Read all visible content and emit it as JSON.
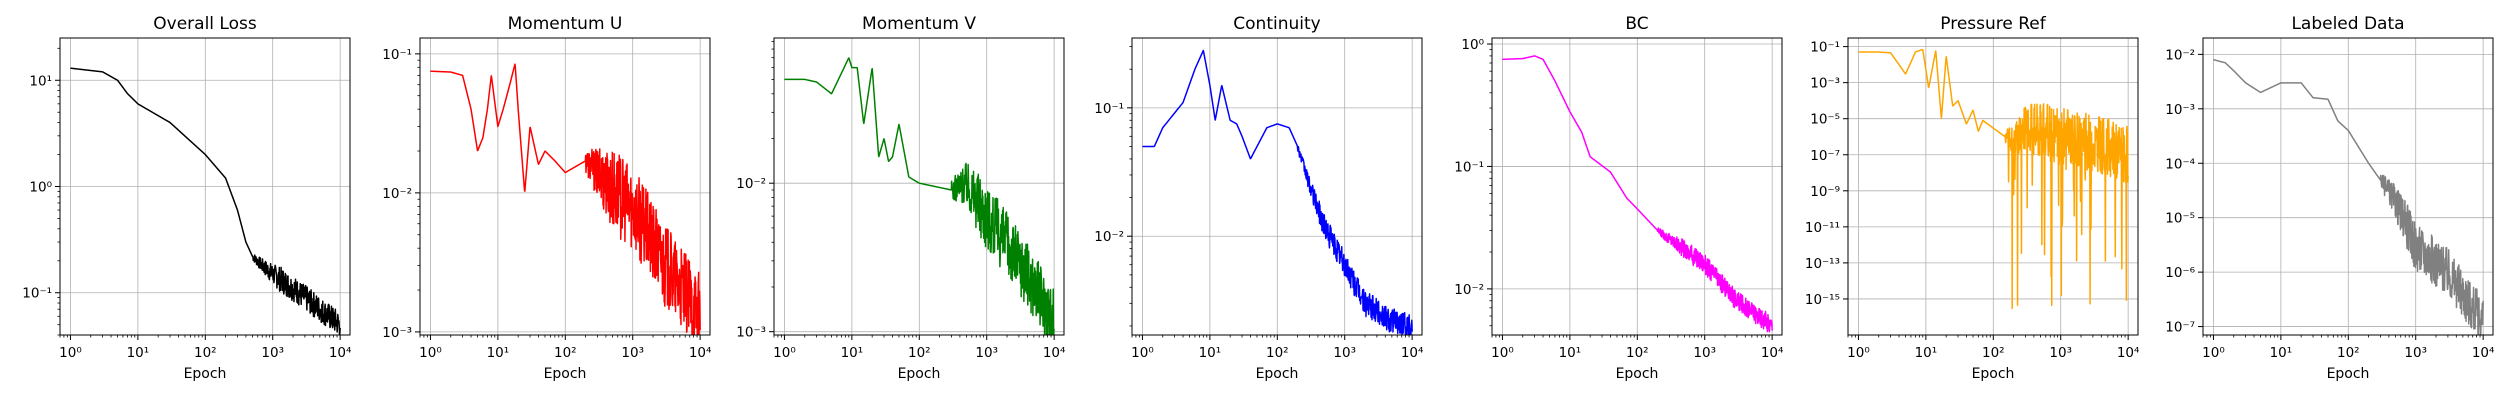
{
  "chart_data": [
    {
      "type": "line",
      "title": "Overall Loss",
      "xlabel": "Epoch",
      "ylabel": "",
      "xscale": "log",
      "yscale": "log",
      "xlim": [
        0.7,
        14000
      ],
      "ylim": [
        0.04,
        25
      ],
      "grid": true,
      "color": "#000000",
      "xticks": [
        {
          "v": 1,
          "t": "10⁰"
        },
        {
          "v": 10,
          "t": "10¹"
        },
        {
          "v": 100,
          "t": "10²"
        },
        {
          "v": 1000,
          "t": "10³"
        },
        {
          "v": 10000,
          "t": "10⁴"
        }
      ],
      "yticks": [
        {
          "v": 0.1,
          "t": "10⁻¹"
        },
        {
          "v": 1,
          "t": "10⁰"
        },
        {
          "v": 10,
          "t": "10¹"
        }
      ],
      "x": [
        1,
        3,
        5,
        7,
        10,
        30,
        100,
        200,
        300,
        400,
        500,
        700,
        1000,
        2000,
        5000,
        10000
      ],
      "y": [
        13,
        12,
        10,
        7.5,
        6,
        4,
        2,
        1.2,
        0.6,
        0.3,
        0.22,
        0.18,
        0.15,
        0.11,
        0.07,
        0.05
      ],
      "noise": {
        "from": 500,
        "amp": 0.12
      }
    },
    {
      "type": "line",
      "title": "Momentum U",
      "xlabel": "Epoch",
      "ylabel": "",
      "xscale": "log",
      "yscale": "log",
      "xlim": [
        0.7,
        14000
      ],
      "ylim": [
        0.00095,
        0.13
      ],
      "grid": true,
      "color": "#ff0000",
      "xticks": [
        {
          "v": 1,
          "t": "10⁰"
        },
        {
          "v": 10,
          "t": "10¹"
        },
        {
          "v": 100,
          "t": "10²"
        },
        {
          "v": 1000,
          "t": "10³"
        },
        {
          "v": 10000,
          "t": "10⁴"
        }
      ],
      "yticks": [
        {
          "v": 0.001,
          "t": "10⁻³"
        },
        {
          "v": 0.01,
          "t": "10⁻²"
        },
        {
          "v": 0.1,
          "t": "10⁻¹"
        }
      ],
      "x": [
        1,
        2,
        3,
        4,
        5,
        6,
        7,
        8,
        10,
        12,
        15,
        18,
        20,
        25,
        30,
        40,
        50,
        70,
        100,
        200,
        400,
        700,
        1000,
        3000,
        10000
      ],
      "y": [
        0.075,
        0.074,
        0.07,
        0.04,
        0.02,
        0.025,
        0.04,
        0.07,
        0.03,
        0.04,
        0.06,
        0.085,
        0.04,
        0.01,
        0.03,
        0.016,
        0.02,
        0.017,
        0.014,
        0.017,
        0.012,
        0.009,
        0.008,
        0.003,
        0.0013
      ],
      "noise": {
        "from": 200,
        "amp": 0.3
      }
    },
    {
      "type": "line",
      "title": "Momentum V",
      "xlabel": "Epoch",
      "ylabel": "",
      "xscale": "log",
      "yscale": "log",
      "xlim": [
        0.7,
        14000
      ],
      "ylim": [
        0.00095,
        0.095
      ],
      "grid": true,
      "color": "#008000",
      "xticks": [
        {
          "v": 1,
          "t": "10⁰"
        },
        {
          "v": 10,
          "t": "10¹"
        },
        {
          "v": 100,
          "t": "10²"
        },
        {
          "v": 1000,
          "t": "10³"
        },
        {
          "v": 10000,
          "t": "10⁴"
        }
      ],
      "yticks": [
        {
          "v": 0.001,
          "t": "10⁻³"
        },
        {
          "v": 0.01,
          "t": "10⁻²"
        }
      ],
      "x": [
        1,
        2,
        3,
        5,
        7,
        9,
        10,
        12,
        15,
        20,
        25,
        30,
        35,
        40,
        50,
        70,
        100,
        300,
        500,
        1000,
        3000,
        10000
      ],
      "y": [
        0.05,
        0.05,
        0.048,
        0.04,
        0.055,
        0.07,
        0.06,
        0.06,
        0.025,
        0.06,
        0.015,
        0.02,
        0.014,
        0.015,
        0.025,
        0.011,
        0.01,
        0.009,
        0.01,
        0.006,
        0.003,
        0.0012
      ],
      "noise": {
        "from": 300,
        "amp": 0.22
      }
    },
    {
      "type": "line",
      "title": "Continuity",
      "xlabel": "Epoch",
      "ylabel": "",
      "xscale": "log",
      "yscale": "log",
      "xlim": [
        0.7,
        14000
      ],
      "ylim": [
        0.0017,
        0.35
      ],
      "grid": true,
      "color": "#0000ff",
      "xticks": [
        {
          "v": 1,
          "t": "10⁰"
        },
        {
          "v": 10,
          "t": "10¹"
        },
        {
          "v": 100,
          "t": "10²"
        },
        {
          "v": 1000,
          "t": "10³"
        },
        {
          "v": 10000,
          "t": "10⁴"
        }
      ],
      "yticks": [
        {
          "v": 0.01,
          "t": "10⁻²"
        },
        {
          "v": 0.1,
          "t": "10⁻¹"
        }
      ],
      "x": [
        1,
        1.5,
        2,
        4,
        6,
        8,
        10,
        12,
        15,
        20,
        25,
        30,
        40,
        50,
        70,
        100,
        150,
        200,
        300,
        500,
        1000,
        2000,
        5000,
        10000
      ],
      "y": [
        0.05,
        0.05,
        0.07,
        0.11,
        0.2,
        0.28,
        0.15,
        0.08,
        0.15,
        0.08,
        0.075,
        0.06,
        0.04,
        0.05,
        0.07,
        0.075,
        0.07,
        0.05,
        0.025,
        0.012,
        0.006,
        0.003,
        0.0022,
        0.002
      ],
      "noise": {
        "from": 200,
        "amp": 0.1
      }
    },
    {
      "type": "line",
      "title": "BC",
      "xlabel": "Epoch",
      "ylabel": "",
      "xscale": "log",
      "yscale": "log",
      "xlim": [
        0.7,
        14000
      ],
      "ylim": [
        0.0042,
        1.12
      ],
      "grid": true,
      "color": "#ff00ff",
      "xticks": [
        {
          "v": 1,
          "t": "10⁰"
        },
        {
          "v": 10,
          "t": "10¹"
        },
        {
          "v": 100,
          "t": "10²"
        },
        {
          "v": 1000,
          "t": "10³"
        },
        {
          "v": 10000,
          "t": "10⁴"
        }
      ],
      "yticks": [
        {
          "v": 0.01,
          "t": "10⁻²"
        },
        {
          "v": 0.1,
          "t": "10⁻¹"
        },
        {
          "v": 1,
          "t": "10⁰"
        }
      ],
      "x": [
        1,
        2,
        3,
        4,
        6,
        10,
        15,
        20,
        40,
        70,
        100,
        200,
        1000,
        3000,
        10000
      ],
      "y": [
        0.75,
        0.76,
        0.8,
        0.75,
        0.5,
        0.28,
        0.19,
        0.12,
        0.09,
        0.055,
        0.045,
        0.03,
        0.016,
        0.008,
        0.005
      ],
      "noise": {
        "from": 200,
        "amp": 0.08
      }
    },
    {
      "type": "line",
      "title": "Pressure Ref",
      "xlabel": "Epoch",
      "ylabel": "",
      "xscale": "log",
      "yscale": "log",
      "xlim": [
        0.7,
        14000
      ],
      "ylim": [
        1e-17,
        0.3
      ],
      "grid": true,
      "color": "#ffa500",
      "xticks": [
        {
          "v": 1,
          "t": "10⁰"
        },
        {
          "v": 10,
          "t": "10¹"
        },
        {
          "v": 100,
          "t": "10²"
        },
        {
          "v": 1000,
          "t": "10³"
        },
        {
          "v": 10000,
          "t": "10⁴"
        }
      ],
      "yticks": [
        {
          "v": 1e-15,
          "t": "10⁻¹⁵"
        },
        {
          "v": 1e-13,
          "t": "10⁻¹³"
        },
        {
          "v": 1e-11,
          "t": "10⁻¹¹"
        },
        {
          "v": 1e-09,
          "t": "10⁻⁹"
        },
        {
          "v": 1e-07,
          "t": "10⁻⁷"
        },
        {
          "v": 1e-05,
          "t": "10⁻⁵"
        },
        {
          "v": 0.001,
          "t": "10⁻³"
        },
        {
          "v": 0.1,
          "t": "10⁻¹"
        }
      ],
      "x": [
        1,
        2,
        3,
        4,
        5,
        7,
        9,
        11,
        14,
        17,
        20,
        25,
        30,
        40,
        50,
        60,
        70,
        100,
        150,
        200,
        300,
        500,
        1000,
        3000,
        10000
      ],
      "y": [
        0.05,
        0.05,
        0.045,
        0.01,
        0.003,
        0.05,
        0.07,
        0.0005,
        0.06,
        1e-05,
        0.03,
        5e-05,
        0.0001,
        5e-06,
        3e-05,
        2e-06,
        8e-06,
        3e-06,
        1e-06,
        5e-07,
        3e-06,
        2e-06,
        1e-06,
        5e-07,
        1e-07
      ],
      "noise": {
        "from": 150,
        "amp": 1.6,
        "spikes": 0.08,
        "spike_min": 1e-16
      }
    },
    {
      "type": "line",
      "title": "Labeled Data",
      "xlabel": "Epoch",
      "ylabel": "",
      "xscale": "log",
      "yscale": "log",
      "xlim": [
        0.7,
        14000
      ],
      "ylim": [
        7e-08,
        0.02
      ],
      "grid": true,
      "color": "#808080",
      "xticks": [
        {
          "v": 1,
          "t": "10⁰"
        },
        {
          "v": 10,
          "t": "10¹"
        },
        {
          "v": 100,
          "t": "10²"
        },
        {
          "v": 1000,
          "t": "10³"
        },
        {
          "v": 10000,
          "t": "10⁴"
        }
      ],
      "yticks": [
        {
          "v": 1e-07,
          "t": "10⁻⁷"
        },
        {
          "v": 1e-06,
          "t": "10⁻⁶"
        },
        {
          "v": 1e-05,
          "t": "10⁻⁵"
        },
        {
          "v": 0.0001,
          "t": "10⁻⁴"
        },
        {
          "v": 0.001,
          "t": "10⁻³"
        },
        {
          "v": 0.01,
          "t": "10⁻²"
        }
      ],
      "x": [
        1,
        1.5,
        2,
        3,
        5,
        10,
        20,
        30,
        50,
        70,
        100,
        200,
        500,
        1000,
        3000,
        10000
      ],
      "y": [
        0.008,
        0.007,
        0.005,
        0.003,
        0.002,
        0.003,
        0.003,
        0.0016,
        0.0015,
        0.0006,
        0.0004,
        0.0001,
        2e-05,
        3e-06,
        1e-06,
        1.2e-07
      ],
      "noise": {
        "from": 300,
        "amp": 0.45
      }
    }
  ]
}
